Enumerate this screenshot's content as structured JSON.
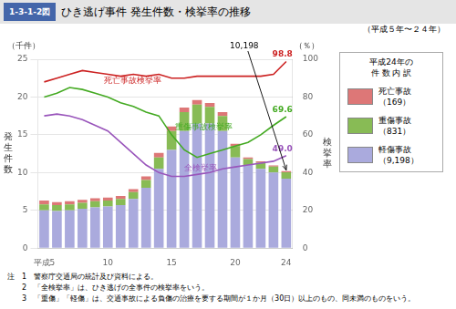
{
  "chart_data": {
    "type": "bar",
    "title": "ひき逃げ事件 発生件数・検挙率の推移",
    "title_badge": "1-3-1-2図",
    "subtitle": "（平成５年〜２４年）",
    "categories": [
      "平成5",
      null,
      null,
      null,
      null,
      "10",
      null,
      null,
      null,
      null,
      "15",
      null,
      null,
      null,
      null,
      "20",
      null,
      null,
      null,
      "24"
    ],
    "stacked": true,
    "series": [
      {
        "name": "軽傷事故",
        "type": "bar",
        "color": "#aaaadd",
        "values": [
          5.0,
          4.9,
          5.0,
          5.2,
          5.4,
          5.5,
          5.7,
          6.5,
          8.0,
          10.5,
          13.0,
          15.5,
          16.5,
          16.5,
          15.5,
          12.0,
          11.0,
          10.5,
          10.0,
          9.2
        ],
        "latest": {
          "value": 9.198,
          "label": "（9,198）"
        }
      },
      {
        "name": "重傷事故",
        "type": "bar",
        "color": "#88bb55",
        "values": [
          0.8,
          0.8,
          0.8,
          0.8,
          0.8,
          0.8,
          0.8,
          0.9,
          1.0,
          1.5,
          2.5,
          2.5,
          2.5,
          2.2,
          2.0,
          1.5,
          0.8,
          0.8,
          0.8,
          0.83
        ],
        "latest": {
          "value": 0.831,
          "label": "（831）"
        }
      },
      {
        "name": "死亡事故",
        "type": "bar",
        "color": "#dd7777",
        "values": [
          0.5,
          0.4,
          0.4,
          0.4,
          0.4,
          0.4,
          0.4,
          0.4,
          0.5,
          0.6,
          0.6,
          0.6,
          0.6,
          0.5,
          0.5,
          0.3,
          0.2,
          0.2,
          0.15,
          0.17
        ],
        "latest": {
          "value": 0.169,
          "label": "（169）"
        }
      },
      {
        "name": "死亡事故検挙率",
        "type": "line",
        "axis": "y2",
        "color": "#cc2222",
        "values": [
          88,
          90,
          92,
          94,
          93,
          92,
          91,
          92,
          91,
          92,
          90,
          90,
          91,
          91,
          91,
          91,
          91,
          91,
          92,
          98.8
        ],
        "value_labels": [
          null,
          null,
          null,
          null,
          null,
          null,
          null,
          null,
          null,
          null,
          null,
          null,
          null,
          null,
          null,
          null,
          null,
          null,
          null,
          "98.8"
        ]
      },
      {
        "name": "重傷事故検挙率",
        "type": "line",
        "axis": "y2",
        "color": "#44aa22",
        "values": [
          80,
          82,
          85,
          84,
          82,
          80,
          77,
          75,
          72,
          70,
          60,
          52,
          48,
          50,
          52,
          54,
          56,
          60,
          65,
          69.6
        ],
        "value_labels": [
          null,
          null,
          null,
          null,
          null,
          null,
          null,
          null,
          null,
          null,
          null,
          null,
          null,
          null,
          null,
          null,
          null,
          null,
          null,
          "69.6"
        ]
      },
      {
        "name": "全検挙率",
        "type": "line",
        "axis": "y2",
        "color": "#9955bb",
        "values": [
          70,
          71,
          70,
          68,
          65,
          62,
          56,
          50,
          44,
          40,
          38,
          38,
          39,
          40,
          42,
          43,
          44,
          45,
          46,
          49.0
        ],
        "value_labels": [
          null,
          null,
          null,
          null,
          null,
          null,
          null,
          null,
          null,
          null,
          null,
          null,
          null,
          null,
          null,
          null,
          null,
          null,
          null,
          "49.0"
        ]
      }
    ],
    "ylim": [
      0,
      25
    ],
    "yticks": [
      0,
      5,
      10,
      15,
      20,
      25
    ],
    "y2lim": [
      0,
      100
    ],
    "y2ticks": [
      0,
      20,
      40,
      60,
      80,
      100
    ],
    "ylabel": "発生件数",
    "yunit": "（千件）",
    "y2label": "検挙率",
    "y2unit": "（％）",
    "grid": true,
    "legend": "right",
    "legend_title": [
      "平成24年の",
      "件 数 内 訳"
    ],
    "annotations": [
      {
        "text": "10,198",
        "value": 10.198,
        "category": "24"
      }
    ],
    "notes": [
      "注　1　警察庁交通局の統計及び資料による。",
      "　　2　「全検挙率」は、ひき逃げの全事件の検挙率をいう。",
      "　　3　「重傷」「軽傷」は、交通事故による負傷の治療を要する期間が１か月（30日）以上のもの、同未満のものをいう。"
    ]
  }
}
